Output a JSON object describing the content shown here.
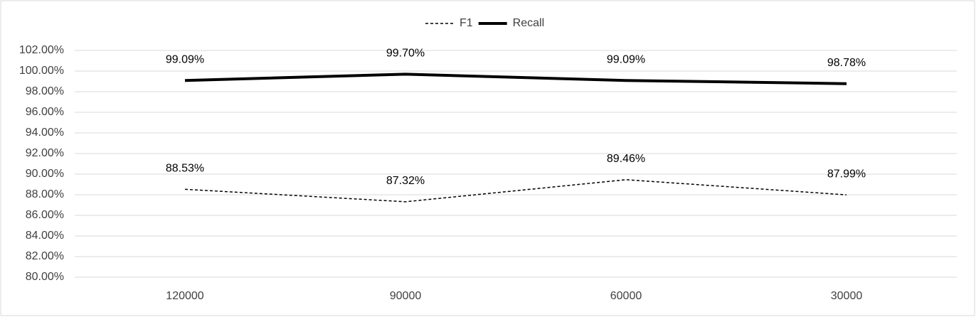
{
  "chart_data": {
    "type": "line",
    "categories": [
      "120000",
      "90000",
      "60000",
      "30000"
    ],
    "series": [
      {
        "name": "F1",
        "color": "#000000",
        "line_style": "dashed",
        "line_width": 1.5,
        "values": [
          88.53,
          87.32,
          89.46,
          87.99
        ],
        "value_labels": [
          "88.53%",
          "87.32%",
          "89.46%",
          "87.99%"
        ]
      },
      {
        "name": "Recall",
        "color": "#000000",
        "line_style": "solid",
        "line_width": 4,
        "values": [
          99.09,
          99.7,
          99.09,
          98.78
        ],
        "value_labels": [
          "99.09%",
          "99.70%",
          "99.09%",
          "98.78%"
        ]
      }
    ],
    "ylim": [
      80,
      102
    ],
    "yticks": [
      {
        "value": 80,
        "label": "80.00%"
      },
      {
        "value": 82,
        "label": "82.00%"
      },
      {
        "value": 84,
        "label": "84.00%"
      },
      {
        "value": 86,
        "label": "86.00%"
      },
      {
        "value": 88,
        "label": "88.00%"
      },
      {
        "value": 90,
        "label": "90.00%"
      },
      {
        "value": 92,
        "label": "92.00%"
      },
      {
        "value": 94,
        "label": "94.00%"
      },
      {
        "value": 96,
        "label": "96.00%"
      },
      {
        "value": 98,
        "label": "98.00%"
      },
      {
        "value": 100,
        "label": "100.00%"
      },
      {
        "value": 102,
        "label": "102.00%"
      }
    ],
    "grid": true,
    "legend": "top"
  }
}
